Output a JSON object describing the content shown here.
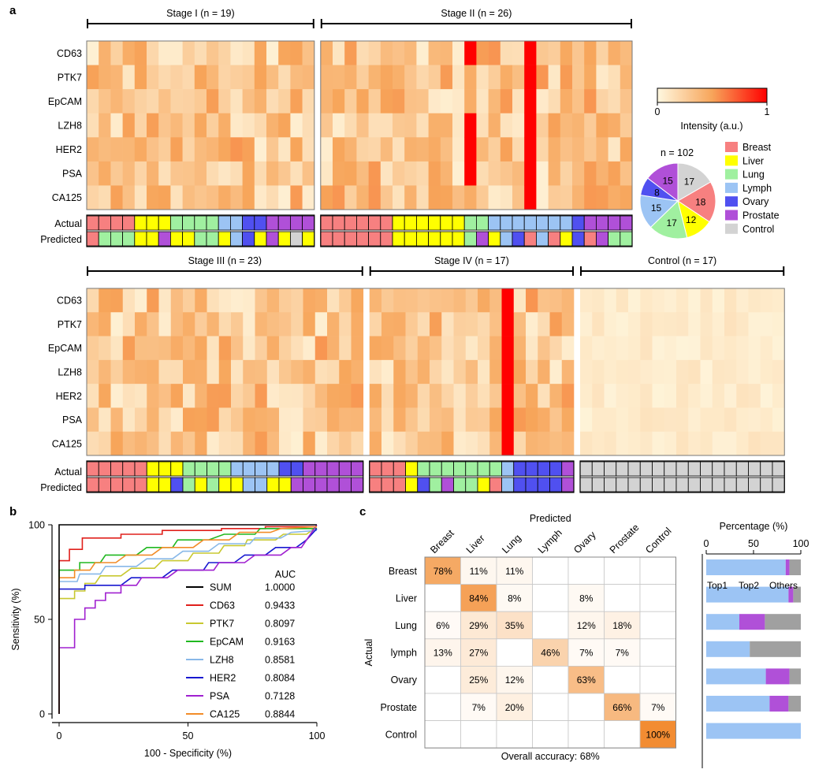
{
  "panel_labels": [
    "a",
    "b",
    "c"
  ],
  "heatmap": {
    "markers": [
      "CD63",
      "PTK7",
      "EpCAM",
      "LZH8",
      "HER2",
      "PSA",
      "CA125"
    ],
    "row_labels": [
      "Actual",
      "Predicted"
    ],
    "stages": [
      {
        "label": "Stage I (n = 19)",
        "n": 19
      },
      {
        "label": "Stage II (n = 26)",
        "n": 26
      },
      {
        "label": "Stage III (n = 23)",
        "n": 23
      },
      {
        "label": "Stage IV (n = 17)",
        "n": 17
      },
      {
        "label": "Control (n = 17)",
        "n": 17
      }
    ],
    "colorbar": {
      "min_label": "0",
      "max_label": "1",
      "title": "Intensity (a.u.)",
      "low_color": "#fff8e0",
      "mid_color": "#f7a55a",
      "high_color": "#ff0000"
    },
    "category_colors": {
      "Breast": "#f78080",
      "Liver": "#ffff00",
      "Lung": "#a0f0a0",
      "Lymph": "#9cc4f4",
      "Ovary": "#5050f0",
      "Prostate": "#b050d8",
      "Control": "#d3d3d3"
    }
  },
  "pie": {
    "title": "n = 102",
    "slices": [
      {
        "name": "Control",
        "value": 17,
        "color": "#d3d3d3"
      },
      {
        "name": "Breast",
        "value": 18,
        "color": "#f78080"
      },
      {
        "name": "Liver",
        "value": 12,
        "color": "#ffff00"
      },
      {
        "name": "Lung",
        "value": 17,
        "color": "#a0f0a0"
      },
      {
        "name": "Lymph",
        "value": 15,
        "color": "#9cc4f4"
      },
      {
        "name": "Ovary",
        "value": 8,
        "color": "#5050f0"
      },
      {
        "name": "Prostate",
        "value": 15,
        "color": "#b050d8"
      }
    ],
    "legend": [
      "Breast",
      "Liver",
      "Lung",
      "Lymph",
      "Ovary",
      "Prostate",
      "Control"
    ]
  },
  "chart_data": [
    {
      "type": "line",
      "xlabel": "100 - Specificity (%)",
      "ylabel": "Sensitivity (%)",
      "xlim": [
        0,
        100
      ],
      "ylim": [
        0,
        100
      ],
      "xticks": [
        0,
        50,
        100
      ],
      "yticks": [
        0,
        50,
        100
      ],
      "legend_title": "AUC",
      "series": [
        {
          "name": "SUM",
          "auc": "1.0000",
          "color": "#000000",
          "points": [
            [
              0,
              0
            ],
            [
              0,
              100
            ],
            [
              100,
              100
            ]
          ]
        },
        {
          "name": "CD63",
          "auc": "0.9433",
          "color": "#e0201c",
          "points": [
            [
              0,
              0
            ],
            [
              0,
              81
            ],
            [
              4,
              81
            ],
            [
              4,
              87
            ],
            [
              9,
              87
            ],
            [
              9,
              93
            ],
            [
              24,
              93
            ],
            [
              24,
              95
            ],
            [
              40,
              95
            ],
            [
              40,
              97
            ],
            [
              63,
              97
            ],
            [
              63,
              98
            ],
            [
              80,
              98
            ],
            [
              80,
              99
            ],
            [
              100,
              99
            ]
          ]
        },
        {
          "name": "PTK7",
          "auc": "0.8097",
          "color": "#c8c830",
          "points": [
            [
              0,
              0
            ],
            [
              0,
              61
            ],
            [
              6,
              61
            ],
            [
              6,
              65
            ],
            [
              10,
              65
            ],
            [
              10,
              69
            ],
            [
              14,
              69
            ],
            [
              16,
              73
            ],
            [
              24,
              73
            ],
            [
              28,
              77
            ],
            [
              37,
              77
            ],
            [
              40,
              81
            ],
            [
              50,
              81
            ],
            [
              52,
              85
            ],
            [
              62,
              85
            ],
            [
              64,
              89
            ],
            [
              72,
              89
            ],
            [
              73,
              92
            ],
            [
              84,
              92
            ],
            [
              87,
              95
            ],
            [
              96,
              95
            ],
            [
              100,
              99
            ]
          ]
        },
        {
          "name": "EpCAM",
          "auc": "0.9163",
          "color": "#20b820",
          "points": [
            [
              0,
              0
            ],
            [
              0,
              76
            ],
            [
              8,
              76
            ],
            [
              8,
              80
            ],
            [
              16,
              80
            ],
            [
              18,
              84
            ],
            [
              30,
              84
            ],
            [
              34,
              88
            ],
            [
              44,
              88
            ],
            [
              46,
              92
            ],
            [
              58,
              92
            ],
            [
              64,
              95
            ],
            [
              76,
              95
            ],
            [
              78,
              98
            ],
            [
              100,
              98
            ]
          ]
        },
        {
          "name": "LZH8",
          "auc": "0.8581",
          "color": "#88b8e8",
          "points": [
            [
              0,
              0
            ],
            [
              0,
              70
            ],
            [
              7,
              70
            ],
            [
              8,
              74
            ],
            [
              16,
              74
            ],
            [
              18,
              78
            ],
            [
              30,
              78
            ],
            [
              34,
              82
            ],
            [
              44,
              82
            ],
            [
              48,
              86
            ],
            [
              58,
              86
            ],
            [
              62,
              90
            ],
            [
              74,
              90
            ],
            [
              76,
              93
            ],
            [
              86,
              93
            ],
            [
              90,
              96
            ],
            [
              100,
              97
            ]
          ]
        },
        {
          "name": "HER2",
          "auc": "0.8084",
          "color": "#1818d0",
          "points": [
            [
              0,
              0
            ],
            [
              0,
              66
            ],
            [
              10,
              66
            ],
            [
              10,
              68
            ],
            [
              24,
              68
            ],
            [
              28,
              72
            ],
            [
              40,
              72
            ],
            [
              44,
              76
            ],
            [
              56,
              76
            ],
            [
              58,
              80
            ],
            [
              68,
              80
            ],
            [
              72,
              84
            ],
            [
              80,
              84
            ],
            [
              84,
              88
            ],
            [
              92,
              88
            ],
            [
              96,
              92
            ],
            [
              100,
              98
            ]
          ]
        },
        {
          "name": "PSA",
          "auc": "0.7128",
          "color": "#a020d0",
          "points": [
            [
              0,
              0
            ],
            [
              0,
              35
            ],
            [
              6,
              35
            ],
            [
              6,
              50
            ],
            [
              10,
              50
            ],
            [
              10,
              56
            ],
            [
              14,
              56
            ],
            [
              14,
              60
            ],
            [
              18,
              60
            ],
            [
              18,
              64
            ],
            [
              24,
              64
            ],
            [
              24,
              68
            ],
            [
              30,
              68
            ],
            [
              32,
              72
            ],
            [
              42,
              72
            ],
            [
              46,
              76
            ],
            [
              60,
              76
            ],
            [
              62,
              80
            ],
            [
              72,
              80
            ],
            [
              76,
              84
            ],
            [
              86,
              84
            ],
            [
              90,
              88
            ],
            [
              94,
              88
            ],
            [
              98,
              96
            ],
            [
              100,
              100
            ]
          ]
        },
        {
          "name": "CA125",
          "auc": "0.8844",
          "color": "#f28c28",
          "points": [
            [
              0,
              0
            ],
            [
              0,
              72
            ],
            [
              6,
              72
            ],
            [
              6,
              76
            ],
            [
              12,
              76
            ],
            [
              14,
              80
            ],
            [
              22,
              80
            ],
            [
              26,
              84
            ],
            [
              36,
              84
            ],
            [
              40,
              88
            ],
            [
              52,
              88
            ],
            [
              56,
              92
            ],
            [
              66,
              92
            ],
            [
              70,
              96
            ],
            [
              82,
              96
            ],
            [
              86,
              98
            ],
            [
              100,
              99
            ]
          ]
        }
      ]
    },
    {
      "type": "heatmap",
      "xlabel": "Predicted",
      "ylabel": "Actual",
      "columns": [
        "Breast",
        "Liver",
        "Lung",
        "Lymph",
        "Ovary",
        "Prostate",
        "Control"
      ],
      "rows": [
        "Breast",
        "Liver",
        "Lung",
        "lymph",
        "Ovary",
        "Prostate",
        "Control"
      ],
      "values": [
        [
          78,
          11,
          11,
          null,
          null,
          null,
          null
        ],
        [
          null,
          84,
          8,
          null,
          8,
          null,
          null
        ],
        [
          6,
          29,
          35,
          null,
          12,
          18,
          null
        ],
        [
          13,
          27,
          null,
          46,
          7,
          7,
          null
        ],
        [
          null,
          25,
          12,
          null,
          63,
          null,
          null
        ],
        [
          null,
          7,
          20,
          null,
          null,
          66,
          7
        ],
        [
          null,
          null,
          null,
          null,
          null,
          null,
          100
        ]
      ],
      "caption": "Overall accuracy: 68%"
    },
    {
      "type": "bar",
      "title": "Percentage (%)",
      "xlim": [
        0,
        100
      ],
      "xticks": [
        0,
        50,
        100
      ],
      "stack_labels": [
        "Top1",
        "Top2",
        "Others"
      ],
      "stack_colors": [
        "#9cc4f4",
        "#b050d8",
        "#a0a0a0"
      ],
      "categories": [
        "Breast",
        "Liver",
        "Lung",
        "lymph",
        "Ovary",
        "Prostate",
        "Control"
      ],
      "series": [
        {
          "name": "Top1",
          "values": [
            84,
            87,
            35,
            46,
            63,
            67,
            100
          ]
        },
        {
          "name": "Top2",
          "values": [
            4,
            5,
            27,
            0,
            25,
            20,
            0
          ]
        },
        {
          "name": "Others",
          "values": [
            12,
            8,
            38,
            54,
            12,
            13,
            0
          ]
        }
      ]
    }
  ]
}
